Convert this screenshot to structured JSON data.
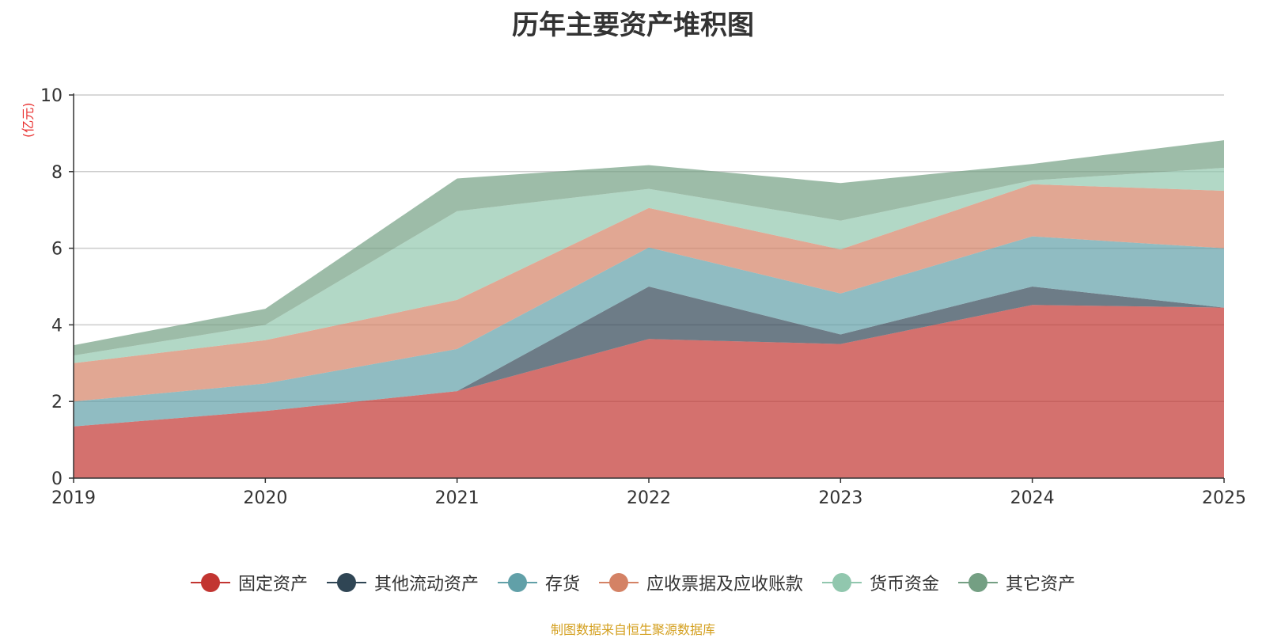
{
  "chart_data": {
    "type": "area",
    "stacked": true,
    "title": "历年主要资产堆积图",
    "ylabel": "(亿元)",
    "xlabel": "",
    "x": [
      "2019",
      "2020",
      "2021",
      "2022",
      "2023",
      "2024",
      "2025"
    ],
    "ylim": [
      0,
      10
    ],
    "yticks": [
      0,
      2,
      4,
      6,
      8,
      10
    ],
    "grid": true,
    "legend_position": "bottom",
    "series": [
      {
        "name": "固定资产",
        "color": "#c23531",
        "values": [
          1.35,
          1.75,
          2.27,
          3.63,
          3.5,
          4.52,
          4.45
        ]
      },
      {
        "name": "其他流动资产",
        "color": "#2f4554",
        "values": [
          0.0,
          0.0,
          0.0,
          1.37,
          0.25,
          0.48,
          0.0
        ]
      },
      {
        "name": "存货",
        "color": "#61a0a8",
        "values": [
          0.65,
          0.72,
          1.1,
          1.02,
          1.07,
          1.31,
          1.55
        ]
      },
      {
        "name": "应收票据及应收账款",
        "color": "#d48265",
        "values": [
          1.0,
          1.13,
          1.28,
          1.03,
          1.15,
          1.36,
          1.5
        ]
      },
      {
        "name": "货币资金",
        "color": "#91c7ae",
        "values": [
          0.2,
          0.4,
          2.32,
          0.5,
          0.75,
          0.1,
          0.6
        ]
      },
      {
        "name": "其它资产",
        "color": "#749f83",
        "values": [
          0.27,
          0.42,
          0.85,
          0.62,
          0.98,
          0.43,
          0.72
        ]
      }
    ]
  },
  "source_note": "制图数据来自恒生聚源数据库"
}
